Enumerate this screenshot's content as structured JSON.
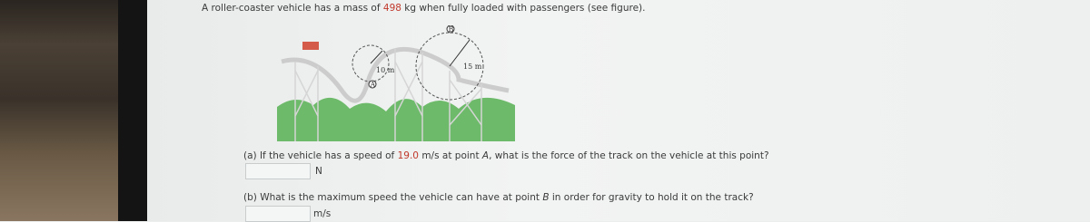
{
  "problem": {
    "intro": [
      "A roller-coaster vehicle has a mass of ",
      "498",
      " kg when fully loaded with passengers (see figure)."
    ],
    "figure": {
      "point_b": "B",
      "radius_a": "10 m",
      "radius_b": "15 m",
      "point_a": "A"
    },
    "part_a": {
      "question": [
        "(a) If the vehicle has a speed of ",
        "19.0",
        " m/s at point ",
        "A",
        ", what is the force of the track on the vehicle at this point?"
      ],
      "unit": "N"
    },
    "part_b": {
      "question": [
        "(b) What is the maximum speed the vehicle can have at point ",
        "B",
        " in order for gravity to hold it on the track?"
      ],
      "unit": "m/s"
    }
  }
}
